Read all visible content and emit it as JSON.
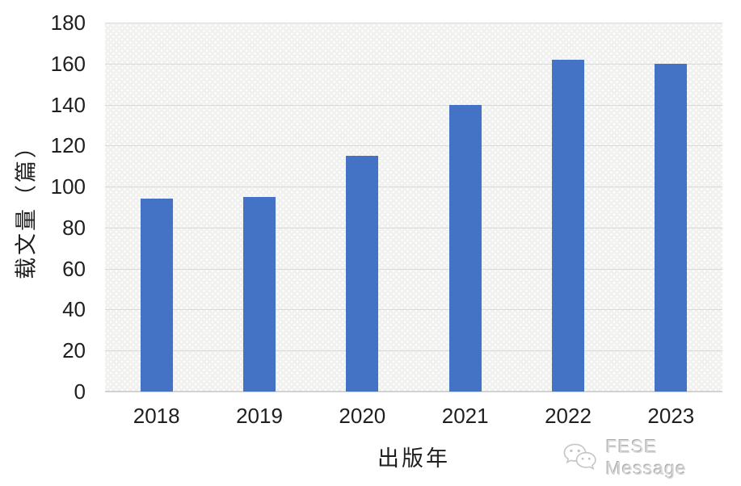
{
  "chart_data": {
    "type": "bar",
    "title": "",
    "categories": [
      "2018",
      "2019",
      "2020",
      "2021",
      "2022",
      "2023"
    ],
    "values": [
      94,
      95,
      115,
      140,
      162,
      160
    ],
    "xlabel": "出版年",
    "ylabel": "载文量（篇）",
    "ylim": [
      0,
      180
    ],
    "yticks": [
      0,
      20,
      40,
      60,
      80,
      100,
      120,
      140,
      160,
      180
    ],
    "grid": true,
    "legend_position": "none",
    "bar_color": "#4472C4",
    "plot_background": "#f1f1ef",
    "gridline_color": "#d9d9d9"
  },
  "watermark": {
    "label": "FESE Message",
    "icon": "wechat-icon",
    "color": "#d9d9d9"
  }
}
